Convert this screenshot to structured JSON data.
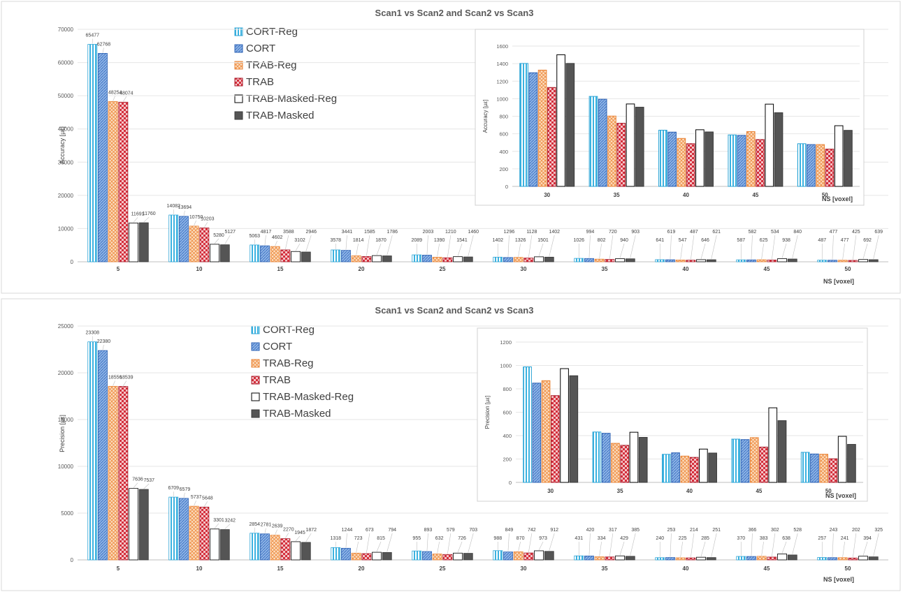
{
  "colors": {
    "CORT-Reg": "#3bb2e0",
    "CORT": "#5b8ed6",
    "TRAB-Reg": "#f2a25c",
    "TRAB": "#c8202f",
    "TRAB-Masked-Reg": "#ffffff",
    "TRAB-Masked": "#555555"
  },
  "chart_data": [
    {
      "type": "bar",
      "title": "Scan1 vs Scan2 and Scan2 vs Scan3",
      "xlabel": "NS [voxel]",
      "ylabel": "Accuracy [µε]",
      "ylim": [
        0,
        70000
      ],
      "yticks": [
        "0",
        "10000",
        "20000",
        "30000",
        "40000",
        "50000",
        "60000",
        "70000"
      ],
      "grid": true,
      "legend": "top-center",
      "categories": [
        "5",
        "10",
        "15",
        "20",
        "25",
        "30",
        "35",
        "40",
        "45",
        "50"
      ],
      "series": [
        {
          "name": "CORT-Reg",
          "values": [
            65477,
            14082,
            5063,
            3578,
            2089,
            1402,
            1026,
            641,
            587,
            487
          ]
        },
        {
          "name": "CORT",
          "values": [
            62768,
            13694,
            4817,
            3441,
            2003,
            1296,
            994,
            619,
            582,
            477
          ]
        },
        {
          "name": "TRAB-Reg",
          "values": [
            48254,
            10750,
            4602,
            1814,
            1390,
            1326,
            802,
            547,
            625,
            477
          ]
        },
        {
          "name": "TRAB",
          "values": [
            48074,
            10203,
            3588,
            1585,
            1210,
            1128,
            720,
            487,
            534,
            425
          ]
        },
        {
          "name": "TRAB-Masked-Reg",
          "values": [
            11691,
            5280,
            3102,
            1870,
            1541,
            1501,
            940,
            646,
            938,
            692
          ]
        },
        {
          "name": "TRAB-Masked",
          "values": [
            11760,
            5127,
            2946,
            1786,
            1460,
            1402,
            903,
            621,
            840,
            639
          ]
        }
      ],
      "inset": {
        "type": "bar",
        "xlabel": "NS [voxel]",
        "ylabel": "Accuracy [µε]",
        "ylim": [
          0,
          1600
        ],
        "yticks": [
          "0",
          "200",
          "400",
          "600",
          "800",
          "1000",
          "1200",
          "1400",
          "1600"
        ],
        "categories": [
          "30",
          "35",
          "40",
          "45",
          "50"
        ],
        "series": [
          {
            "name": "CORT-Reg",
            "values": [
              1402,
              1026,
              641,
              587,
              487
            ]
          },
          {
            "name": "CORT",
            "values": [
              1296,
              994,
              619,
              582,
              477
            ]
          },
          {
            "name": "TRAB-Reg",
            "values": [
              1326,
              802,
              547,
              625,
              477
            ]
          },
          {
            "name": "TRAB",
            "values": [
              1128,
              720,
              487,
              534,
              425
            ]
          },
          {
            "name": "TRAB-Masked-Reg",
            "values": [
              1501,
              940,
              646,
              938,
              692
            ]
          },
          {
            "name": "TRAB-Masked",
            "values": [
              1402,
              903,
              621,
              840,
              639
            ]
          }
        ]
      }
    },
    {
      "type": "bar",
      "title": "Scan1 vs Scan2 and Scan2 vs Scan3",
      "xlabel": "NS [voxel]",
      "ylabel": "Precision [µε]",
      "ylim": [
        0,
        25000
      ],
      "yticks": [
        "0",
        "5000",
        "10000",
        "15000",
        "20000",
        "25000"
      ],
      "grid": true,
      "legend": "top-center",
      "categories": [
        "5",
        "10",
        "15",
        "20",
        "25",
        "30",
        "35",
        "40",
        "45",
        "50"
      ],
      "series": [
        {
          "name": "CORT-Reg",
          "values": [
            23308,
            6709,
            2854,
            1318,
            955,
            988,
            431,
            240,
            370,
            257
          ]
        },
        {
          "name": "CORT",
          "values": [
            22380,
            6579,
            2781,
            1244,
            893,
            849,
            420,
            253,
            366,
            243
          ]
        },
        {
          "name": "TRAB-Reg",
          "values": [
            18556,
            5737,
            2639,
            723,
            632,
            870,
            334,
            225,
            383,
            241
          ]
        },
        {
          "name": "TRAB",
          "values": [
            18539,
            5648,
            2270,
            673,
            579,
            742,
            317,
            214,
            302,
            202
          ]
        },
        {
          "name": "TRAB-Masked-Reg",
          "values": [
            7636,
            3301,
            1945,
            815,
            726,
            973,
            429,
            285,
            638,
            394
          ]
        },
        {
          "name": "TRAB-Masked",
          "values": [
            7537,
            3242,
            1872,
            794,
            703,
            912,
            385,
            251,
            528,
            325
          ]
        }
      ],
      "inset": {
        "type": "bar",
        "xlabel": "NS [voxel]",
        "ylabel": "Precision [µε]",
        "ylim": [
          0,
          1200
        ],
        "yticks": [
          "0",
          "200",
          "400",
          "600",
          "800",
          "1000",
          "1200"
        ],
        "categories": [
          "30",
          "35",
          "40",
          "45",
          "50"
        ],
        "series": [
          {
            "name": "CORT-Reg",
            "values": [
              988,
              431,
              240,
              370,
              257
            ]
          },
          {
            "name": "CORT",
            "values": [
              849,
              420,
              253,
              366,
              243
            ]
          },
          {
            "name": "TRAB-Reg",
            "values": [
              870,
              334,
              225,
              383,
              241
            ]
          },
          {
            "name": "TRAB",
            "values": [
              742,
              317,
              214,
              302,
              202
            ]
          },
          {
            "name": "TRAB-Masked-Reg",
            "values": [
              973,
              429,
              285,
              638,
              394
            ]
          },
          {
            "name": "TRAB-Masked",
            "values": [
              912,
              385,
              251,
              528,
              325
            ]
          }
        ]
      }
    }
  ]
}
